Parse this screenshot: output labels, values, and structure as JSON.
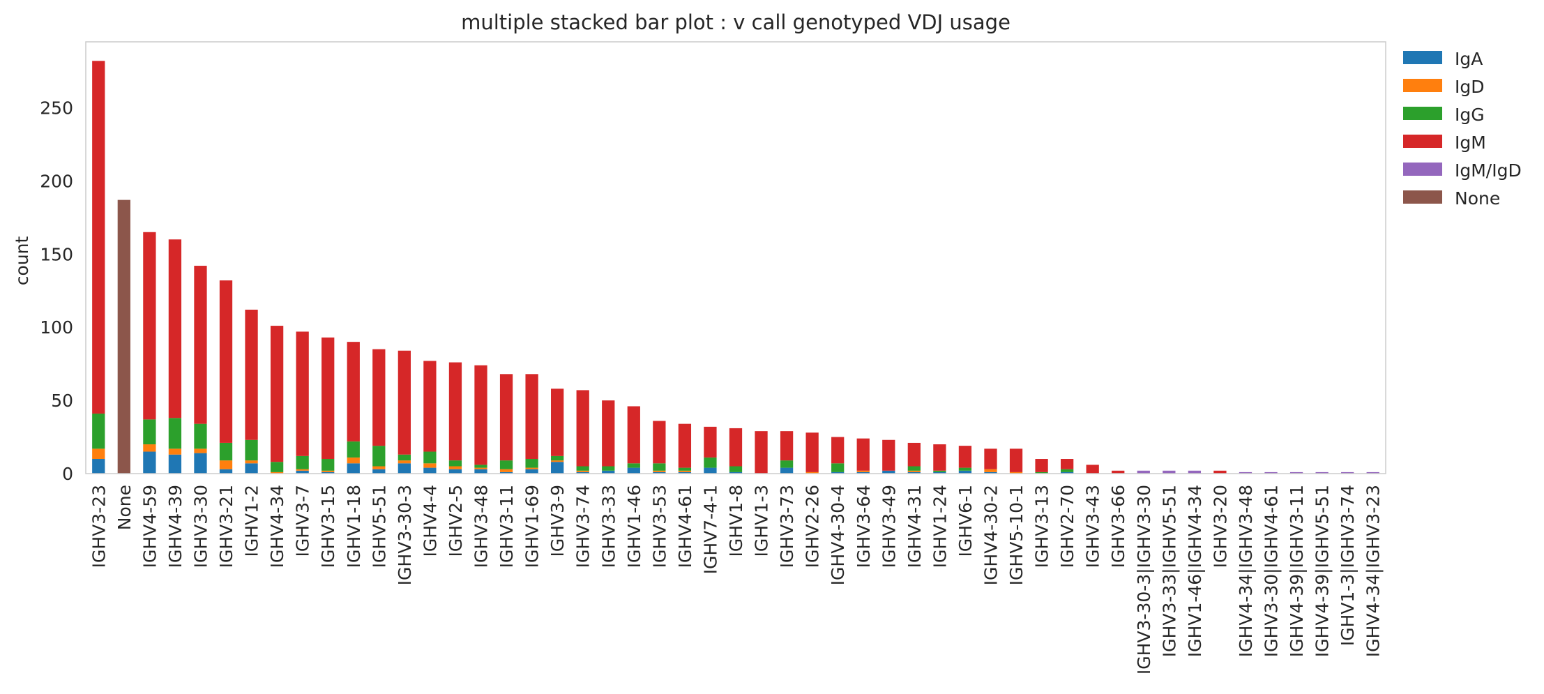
{
  "chart_data": {
    "type": "bar",
    "stacked": true,
    "title": "multiple stacked bar plot : v call genotyped VDJ usage",
    "xlabel": "",
    "ylabel": "count",
    "ylim": [
      0,
      295
    ],
    "yticks": [
      0,
      50,
      100,
      150,
      200,
      250
    ],
    "grid": false,
    "legend_position": "outside-top-right",
    "categories": [
      "IGHV3-23",
      "None",
      "IGHV4-59",
      "IGHV4-39",
      "IGHV3-30",
      "IGHV3-21",
      "IGHV1-2",
      "IGHV4-34",
      "IGHV3-7",
      "IGHV3-15",
      "IGHV1-18",
      "IGHV5-51",
      "IGHV3-30-3",
      "IGHV4-4",
      "IGHV2-5",
      "IGHV3-48",
      "IGHV3-11",
      "IGHV1-69",
      "IGHV3-9",
      "IGHV3-74",
      "IGHV3-33",
      "IGHV1-46",
      "IGHV3-53",
      "IGHV4-61",
      "IGHV7-4-1",
      "IGHV1-8",
      "IGHV1-3",
      "IGHV3-73",
      "IGHV2-26",
      "IGHV4-30-4",
      "IGHV3-64",
      "IGHV3-49",
      "IGHV4-31",
      "IGHV1-24",
      "IGHV6-1",
      "IGHV4-30-2",
      "IGHV5-10-1",
      "IGHV3-13",
      "IGHV2-70",
      "IGHV3-43",
      "IGHV3-66",
      "IGHV3-30-3|IGHV3-30",
      "IGHV3-33|IGHV5-51",
      "IGHV1-46|IGHV4-34",
      "IGHV3-20",
      "IGHV4-34|IGHV3-48",
      "IGHV3-30|IGHV4-61",
      "IGHV4-39|IGHV3-11",
      "IGHV4-39|IGHV5-51",
      "IGHV1-3|IGHV3-74",
      "IGHV4-34|IGHV3-23"
    ],
    "series": [
      {
        "name": "IgA",
        "color": "#1f77b4",
        "values": [
          10,
          0,
          15,
          13,
          14,
          3,
          7,
          0,
          2,
          1,
          7,
          3,
          7,
          4,
          3,
          3,
          1,
          3,
          8,
          1,
          2,
          4,
          1,
          1,
          4,
          1,
          0,
          4,
          0,
          1,
          1,
          2,
          1,
          1,
          2,
          1,
          0,
          0,
          1,
          0,
          0,
          0,
          0,
          0,
          0,
          0,
          0,
          0,
          0,
          0,
          0
        ]
      },
      {
        "name": "IgD",
        "color": "#ff7f0e",
        "values": [
          7,
          0,
          5,
          4,
          3,
          6,
          2,
          1,
          1,
          1,
          4,
          2,
          2,
          3,
          2,
          1,
          2,
          1,
          1,
          1,
          0,
          0,
          1,
          1,
          0,
          0,
          0,
          0,
          1,
          0,
          1,
          0,
          1,
          0,
          0,
          2,
          1,
          0,
          0,
          0,
          0,
          0,
          0,
          0,
          0,
          0,
          0,
          0,
          0,
          0,
          0
        ]
      },
      {
        "name": "IgG",
        "color": "#2ca02c",
        "values": [
          24,
          0,
          17,
          21,
          17,
          12,
          14,
          7,
          9,
          8,
          11,
          14,
          4,
          8,
          4,
          2,
          6,
          6,
          3,
          3,
          3,
          3,
          5,
          2,
          7,
          4,
          0,
          5,
          0,
          6,
          0,
          0,
          3,
          1,
          2,
          0,
          0,
          1,
          2,
          0,
          0,
          0,
          0,
          0,
          0,
          0,
          0,
          0,
          0,
          0,
          0
        ]
      },
      {
        "name": "IgM",
        "color": "#d62728",
        "values": [
          241,
          0,
          128,
          122,
          108,
          111,
          89,
          93,
          85,
          83,
          68,
          66,
          71,
          62,
          67,
          68,
          59,
          58,
          46,
          52,
          45,
          39,
          29,
          30,
          21,
          26,
          29,
          20,
          27,
          18,
          22,
          21,
          16,
          18,
          15,
          14,
          16,
          9,
          7,
          6,
          2,
          0,
          0,
          0,
          2,
          0,
          0,
          0,
          0,
          0,
          0
        ]
      },
      {
        "name": "IgM/IgD",
        "color": "#9467bd",
        "values": [
          0,
          0,
          0,
          0,
          0,
          0,
          0,
          0,
          0,
          0,
          0,
          0,
          0,
          0,
          0,
          0,
          0,
          0,
          0,
          0,
          0,
          0,
          0,
          0,
          0,
          0,
          0,
          0,
          0,
          0,
          0,
          0,
          0,
          0,
          0,
          0,
          0,
          0,
          0,
          0,
          0,
          2,
          2,
          2,
          0,
          1,
          1,
          1,
          1,
          1,
          1
        ]
      },
      {
        "name": "None",
        "color": "#8c564b",
        "values": [
          0,
          187,
          0,
          0,
          0,
          0,
          0,
          0,
          0,
          0,
          0,
          0,
          0,
          0,
          0,
          0,
          0,
          0,
          0,
          0,
          0,
          0,
          0,
          0,
          0,
          0,
          0,
          0,
          0,
          0,
          0,
          0,
          0,
          0,
          0,
          0,
          0,
          0,
          0,
          0,
          0,
          0,
          0,
          0,
          0,
          0,
          0,
          0,
          0,
          0,
          0
        ]
      }
    ]
  }
}
